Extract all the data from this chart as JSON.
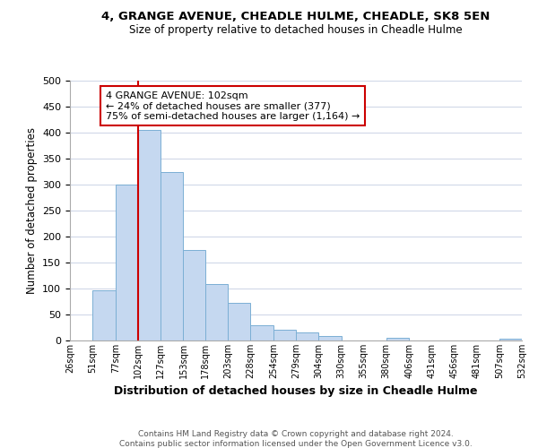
{
  "title": "4, GRANGE AVENUE, CHEADLE HULME, CHEADLE, SK8 5EN",
  "subtitle": "Size of property relative to detached houses in Cheadle Hulme",
  "xlabel": "Distribution of detached houses by size in Cheadle Hulme",
  "ylabel": "Number of detached properties",
  "bin_edges": [
    26,
    51,
    77,
    102,
    127,
    153,
    178,
    203,
    228,
    254,
    279,
    304,
    330,
    355,
    380,
    406,
    431,
    456,
    481,
    507,
    532
  ],
  "bar_heights": [
    0,
    97,
    300,
    406,
    325,
    174,
    109,
    72,
    30,
    20,
    15,
    8,
    0,
    0,
    6,
    0,
    0,
    0,
    0,
    3
  ],
  "bar_color": "#c5d8f0",
  "bar_edge_color": "#7bafd4",
  "vline_x": 102,
  "vline_color": "#cc0000",
  "annotation_title": "4 GRANGE AVENUE: 102sqm",
  "annotation_line1": "← 24% of detached houses are smaller (377)",
  "annotation_line2": "75% of semi-detached houses are larger (1,164) →",
  "annotation_box_color": "#ffffff",
  "annotation_box_edge": "#cc0000",
  "tick_labels": [
    "26sqm",
    "51sqm",
    "77sqm",
    "102sqm",
    "127sqm",
    "153sqm",
    "178sqm",
    "203sqm",
    "228sqm",
    "254sqm",
    "279sqm",
    "304sqm",
    "330sqm",
    "355sqm",
    "380sqm",
    "406sqm",
    "431sqm",
    "456sqm",
    "481sqm",
    "507sqm",
    "532sqm"
  ],
  "ylim": [
    0,
    500
  ],
  "yticks": [
    0,
    50,
    100,
    150,
    200,
    250,
    300,
    350,
    400,
    450,
    500
  ],
  "footer1": "Contains HM Land Registry data © Crown copyright and database right 2024.",
  "footer2": "Contains public sector information licensed under the Open Government Licence v3.0.",
  "background_color": "#ffffff",
  "grid_color": "#d0d8e8"
}
